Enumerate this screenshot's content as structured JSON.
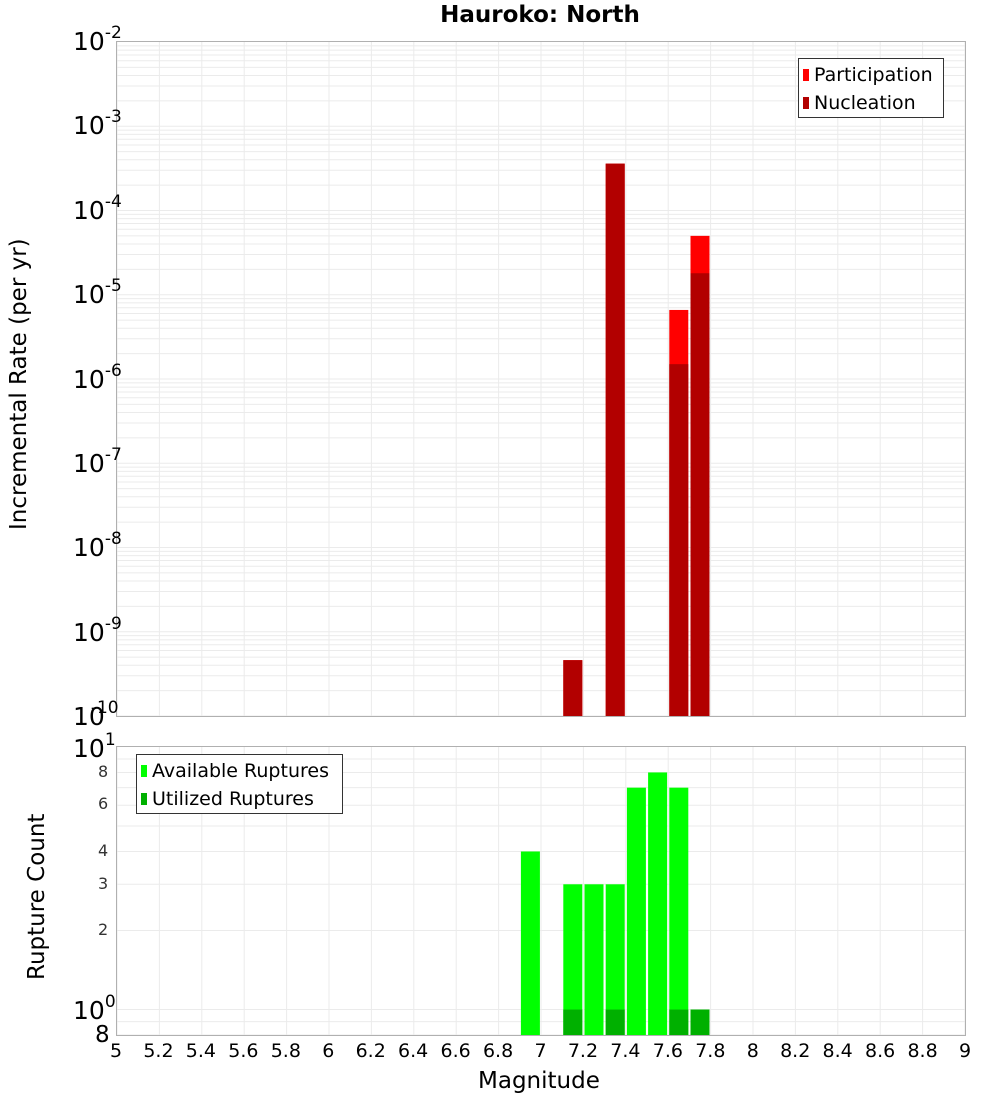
{
  "title": "Hauroko: North",
  "top_plot": {
    "ylabel": "Incremental Rate (per yr)",
    "decade_labels": [
      {
        "base": "10",
        "exp": "-2"
      },
      {
        "base": "10",
        "exp": "-3"
      },
      {
        "base": "10",
        "exp": "-4"
      },
      {
        "base": "10",
        "exp": "-5"
      },
      {
        "base": "10",
        "exp": "-6"
      },
      {
        "base": "10",
        "exp": "-7"
      },
      {
        "base": "10",
        "exp": "-8"
      },
      {
        "base": "10",
        "exp": "-9"
      },
      {
        "base": "10",
        "exp": "-10"
      }
    ],
    "legend": [
      {
        "label": "Participation",
        "color": "#ff0000"
      },
      {
        "label": "Nucleation",
        "color": "#b20000"
      }
    ]
  },
  "bottom_plot": {
    "ylabel": "Rupture Count",
    "top_label": {
      "base": "10",
      "exp": "1"
    },
    "mid_label": {
      "base": "10",
      "exp": "0"
    },
    "minor_labels": [
      "8",
      "6",
      "4",
      "3",
      "2"
    ],
    "bottom_label": "8",
    "legend": [
      {
        "label": "Available Ruptures",
        "color": "#00ff00"
      },
      {
        "label": "Utilized Ruptures",
        "color": "#00b000"
      }
    ]
  },
  "xaxis": {
    "label": "Magnitude",
    "ticks": [
      "5",
      "5.2",
      "5.4",
      "5.6",
      "5.8",
      "6",
      "6.2",
      "6.4",
      "6.6",
      "6.8",
      "7",
      "7.2",
      "7.4",
      "7.6",
      "7.8",
      "8",
      "8.2",
      "8.4",
      "8.6",
      "8.8",
      "9"
    ]
  },
  "chart_data": [
    {
      "type": "bar",
      "title": "Hauroko: North",
      "xlabel": "Magnitude",
      "ylabel": "Incremental Rate (per yr)",
      "yscale": "log",
      "xlim": [
        5,
        9
      ],
      "ylim": [
        1e-10,
        0.01
      ],
      "grid": true,
      "legend_position": "top-right",
      "x": [
        7.15,
        7.35,
        7.65,
        7.75
      ],
      "series": [
        {
          "name": "Participation",
          "color": "#ff0000",
          "values": [
            4.6e-10,
            0.00036,
            6.6e-06,
            5e-05
          ]
        },
        {
          "name": "Nucleation",
          "color": "#b20000",
          "values": [
            4.6e-10,
            0.00036,
            1.5e-06,
            1.8e-05
          ]
        }
      ]
    },
    {
      "type": "bar",
      "title": "",
      "xlabel": "Magnitude",
      "ylabel": "Rupture Count",
      "yscale": "log",
      "xlim": [
        5,
        9
      ],
      "ylim": [
        0.8,
        10
      ],
      "grid": true,
      "legend_position": "top-left",
      "x": [
        6.95,
        7.15,
        7.25,
        7.35,
        7.45,
        7.55,
        7.65,
        7.75
      ],
      "series": [
        {
          "name": "Available Ruptures",
          "color": "#00ff00",
          "values": [
            4,
            3,
            3,
            3,
            7,
            8,
            7,
            1
          ]
        },
        {
          "name": "Utilized Ruptures",
          "color": "#00b000",
          "values": [
            0,
            1,
            0,
            1,
            0,
            0,
            1,
            1
          ]
        }
      ]
    }
  ]
}
